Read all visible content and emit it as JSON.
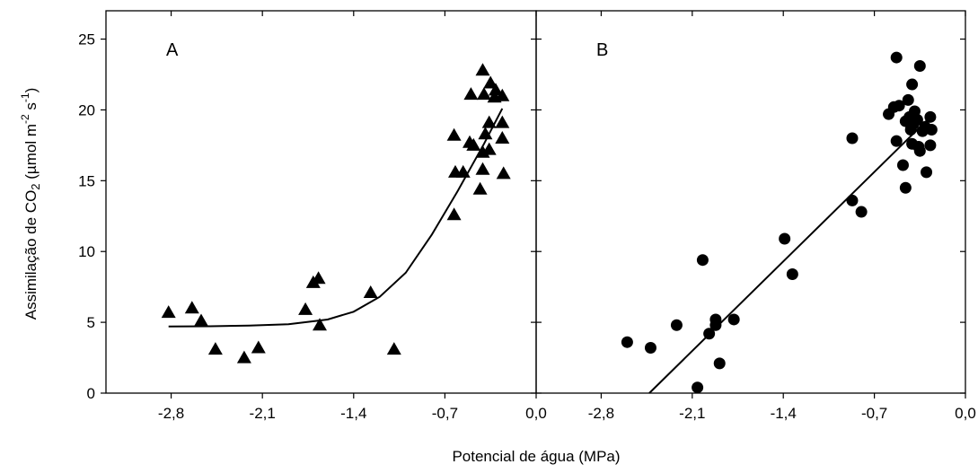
{
  "xlabel": "Potencial de água (MPa)",
  "ylabel": {
    "prefix": "Assimilação de CO",
    "sub2": "2",
    "unit_open": " (µmol m",
    "sup_m": "-2",
    "unit_s": " s",
    "sup_s": "-1",
    "unit_close": ")"
  },
  "chart_data": [
    {
      "type": "scatter",
      "panel": "A",
      "marker": "triangle",
      "xlim": [
        -3.3,
        0.0
      ],
      "ylim": [
        0,
        27
      ],
      "xticks": [
        -2.8,
        -2.1,
        -1.4,
        -0.7,
        0.0
      ],
      "xtick_labels": [
        "-2,8",
        "-2,1",
        "-1,4",
        "-0,7",
        "0,0"
      ],
      "yticks": [
        0,
        5,
        10,
        15,
        20,
        25
      ],
      "ytick_labels": [
        "0",
        "5",
        "10",
        "15",
        "20",
        "25"
      ],
      "points": [
        [
          -2.82,
          5.7
        ],
        [
          -2.64,
          6.0
        ],
        [
          -2.57,
          5.1
        ],
        [
          -2.46,
          3.1
        ],
        [
          -2.24,
          2.5
        ],
        [
          -2.13,
          3.2
        ],
        [
          -1.77,
          5.9
        ],
        [
          -1.71,
          7.8
        ],
        [
          -1.67,
          8.1
        ],
        [
          -1.66,
          4.8
        ],
        [
          -1.27,
          7.1
        ],
        [
          -1.09,
          3.1
        ],
        [
          -0.63,
          18.2
        ],
        [
          -0.63,
          12.6
        ],
        [
          -0.62,
          15.6
        ],
        [
          -0.56,
          15.6
        ],
        [
          -0.51,
          17.7
        ],
        [
          -0.5,
          21.1
        ],
        [
          -0.48,
          17.5
        ],
        [
          -0.43,
          14.4
        ],
        [
          -0.41,
          15.8
        ],
        [
          -0.41,
          17.0
        ],
        [
          -0.41,
          22.8
        ],
        [
          -0.4,
          21.1
        ],
        [
          -0.39,
          18.3
        ],
        [
          -0.36,
          17.2
        ],
        [
          -0.36,
          19.1
        ],
        [
          -0.35,
          21.9
        ],
        [
          -0.32,
          20.9
        ],
        [
          -0.31,
          21.4
        ],
        [
          -0.26,
          21.0
        ],
        [
          -0.26,
          19.1
        ],
        [
          -0.26,
          18.0
        ],
        [
          -0.25,
          15.5
        ]
      ],
      "fit": {
        "type": "exponential",
        "x": [
          -2.82,
          -2.5,
          -2.2,
          -1.9,
          -1.6,
          -1.4,
          -1.2,
          -1.0,
          -0.8,
          -0.6,
          -0.4,
          -0.26
        ],
        "y": [
          4.7,
          4.72,
          4.77,
          4.87,
          5.2,
          5.75,
          6.8,
          8.5,
          11.2,
          14.3,
          17.6,
          20.1
        ]
      }
    },
    {
      "type": "scatter",
      "panel": "B",
      "marker": "circle",
      "xlim": [
        -3.3,
        0.0
      ],
      "ylim": [
        0,
        27
      ],
      "xticks": [
        -2.8,
        -2.1,
        -1.4,
        -0.7,
        0.0
      ],
      "xtick_labels": [
        "-2,8",
        "-2,1",
        "-1,4",
        "-0,7",
        "0,0"
      ],
      "yticks": [
        0,
        5,
        10,
        15,
        20,
        25
      ],
      "ytick_labels": [
        "0",
        "5",
        "10",
        "15",
        "20",
        "25"
      ],
      "points": [
        [
          -2.6,
          3.6
        ],
        [
          -2.42,
          3.2
        ],
        [
          -2.22,
          4.8
        ],
        [
          -2.06,
          0.4
        ],
        [
          -2.02,
          9.4
        ],
        [
          -1.97,
          4.2
        ],
        [
          -1.92,
          5.2
        ],
        [
          -1.92,
          4.8
        ],
        [
          -1.89,
          2.1
        ],
        [
          -1.78,
          5.2
        ],
        [
          -1.39,
          10.9
        ],
        [
          -1.33,
          8.4
        ],
        [
          -0.87,
          18.0
        ],
        [
          -0.87,
          13.6
        ],
        [
          -0.8,
          12.8
        ],
        [
          -0.59,
          19.7
        ],
        [
          -0.55,
          20.2
        ],
        [
          -0.53,
          23.7
        ],
        [
          -0.53,
          17.8
        ],
        [
          -0.51,
          20.3
        ],
        [
          -0.48,
          16.1
        ],
        [
          -0.46,
          19.2
        ],
        [
          -0.46,
          14.5
        ],
        [
          -0.44,
          20.7
        ],
        [
          -0.43,
          19.5
        ],
        [
          -0.42,
          18.6
        ],
        [
          -0.41,
          21.8
        ],
        [
          -0.41,
          17.6
        ],
        [
          -0.4,
          19.0
        ],
        [
          -0.39,
          19.9
        ],
        [
          -0.37,
          19.3
        ],
        [
          -0.36,
          17.4
        ],
        [
          -0.35,
          23.1
        ],
        [
          -0.35,
          17.1
        ],
        [
          -0.33,
          18.5
        ],
        [
          -0.31,
          18.8
        ],
        [
          -0.3,
          15.6
        ],
        [
          -0.27,
          19.5
        ],
        [
          -0.27,
          17.5
        ],
        [
          -0.26,
          18.6
        ]
      ],
      "fit": {
        "type": "linear",
        "x": [
          -2.43,
          -0.27
        ],
        "y": [
          0.0,
          19.5
        ]
      }
    }
  ]
}
